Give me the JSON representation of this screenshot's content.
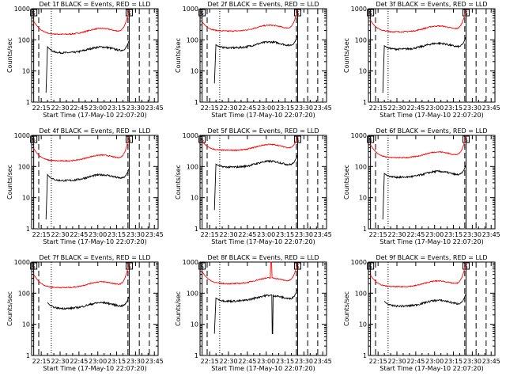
{
  "chart_data": {
    "type": "line",
    "x_ticks": [
      "22:15",
      "22:30",
      "22:45",
      "23:00",
      "23:15",
      "23:30",
      "23:45"
    ],
    "y_ticks": [
      "1",
      "10",
      "100",
      "1000"
    ],
    "ylim": [
      1,
      1000
    ],
    "y_scale": "log",
    "xlabel": "Start Time (17-May-10 22:07:20)",
    "ylabel": "Counts/sec",
    "flag_label": "S",
    "colors": {
      "events": "#000000",
      "lld": "#ff0000",
      "axes": "#000000"
    },
    "panels": [
      {
        "title": "Det 1f BLACK = Events, RED = LLD",
        "red_base": 150,
        "red_edge": 400,
        "black_base": 38,
        "black_edge": 60,
        "black_dip": 2,
        "red_spike": null,
        "black_spike": null
      },
      {
        "title": "Det 2f BLACK = Events, RED = LLD",
        "red_base": 190,
        "red_edge": 380,
        "black_base": 55,
        "black_edge": 70,
        "black_dip": 4,
        "red_spike": null,
        "black_spike": null
      },
      {
        "title": "Det 3f BLACK = Events, RED = LLD",
        "red_base": 180,
        "red_edge": 420,
        "black_base": 50,
        "black_edge": 65,
        "black_dip": 2,
        "red_spike": null,
        "black_spike": null
      },
      {
        "title": "Det 4f BLACK = Events, RED = LLD",
        "red_base": 150,
        "red_edge": 380,
        "black_base": 35,
        "black_edge": 55,
        "black_dip": 2,
        "red_spike": null,
        "black_spike": null
      },
      {
        "title": "Det 5f BLACK = Events, RED = LLD",
        "red_base": 330,
        "red_edge": 650,
        "black_base": 95,
        "black_edge": 120,
        "black_dip": 4,
        "red_spike": null,
        "black_spike": null
      },
      {
        "title": "Det 6f BLACK = Events, RED = LLD",
        "red_base": 190,
        "red_edge": 500,
        "black_base": 45,
        "black_edge": 60,
        "black_dip": 2,
        "red_spike": null,
        "black_spike": null
      },
      {
        "title": "Det 7f BLACK = Events, RED = LLD",
        "red_base": 150,
        "red_edge": 400,
        "black_base": 32,
        "black_edge": 50,
        "black_dip": null,
        "red_spike": null,
        "black_spike": null
      },
      {
        "title": "Det 8f BLACK = Events, RED = LLD",
        "red_base": 200,
        "red_edge": 500,
        "black_base": 55,
        "black_edge": 70,
        "black_dip": 5,
        "red_spike": "23:04",
        "black_spike": "23:05"
      },
      {
        "title": "Det 9f BLACK = Events, RED = LLD",
        "red_base": 160,
        "red_edge": 380,
        "black_base": 38,
        "black_edge": 55,
        "black_dip": null,
        "red_spike": null,
        "black_spike": null
      }
    ]
  }
}
